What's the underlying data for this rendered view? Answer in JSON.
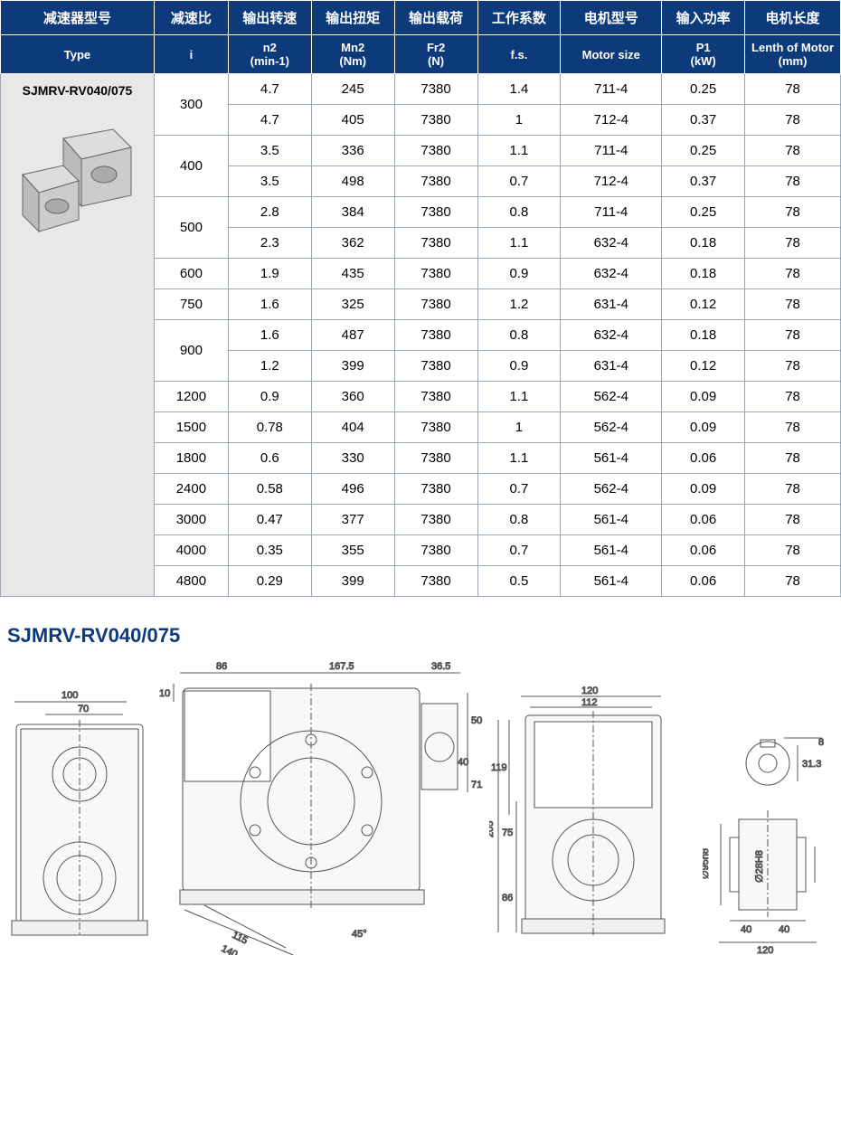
{
  "headers_cn": [
    "减速器型号",
    "减速比",
    "输出转速",
    "输出扭矩",
    "输出载荷",
    "工作系数",
    "电机型号",
    "输入功率",
    "电机长度"
  ],
  "headers_en": [
    "Type",
    "i",
    "n2\n(min-1)",
    "Mn2\n(Nm)",
    "Fr2\n(N)",
    "f.s.",
    "Motor size",
    "P1\n(kW)",
    "Lenth of Motor\n(mm)"
  ],
  "type_label": "SJMRV-RV040/075",
  "rows": [
    {
      "i": "300",
      "n2": "4.7",
      "mn2": "245",
      "fr2": "7380",
      "fs": "1.4",
      "motor": "711-4",
      "p1": "0.25",
      "ml": "78"
    },
    {
      "i": "",
      "n2": "4.7",
      "mn2": "405",
      "fr2": "7380",
      "fs": "1",
      "motor": "712-4",
      "p1": "0.37",
      "ml": "78"
    },
    {
      "i": "400",
      "n2": "3.5",
      "mn2": "336",
      "fr2": "7380",
      "fs": "1.1",
      "motor": "711-4",
      "p1": "0.25",
      "ml": "78"
    },
    {
      "i": "",
      "n2": "3.5",
      "mn2": "498",
      "fr2": "7380",
      "fs": "0.7",
      "motor": "712-4",
      "p1": "0.37",
      "ml": "78"
    },
    {
      "i": "500",
      "n2": "2.8",
      "mn2": "384",
      "fr2": "7380",
      "fs": "0.8",
      "motor": "711-4",
      "p1": "0.25",
      "ml": "78"
    },
    {
      "i": "",
      "n2": "2.3",
      "mn2": "362",
      "fr2": "7380",
      "fs": "1.1",
      "motor": "632-4",
      "p1": "0.18",
      "ml": "78"
    },
    {
      "i": "600",
      "n2": "1.9",
      "mn2": "435",
      "fr2": "7380",
      "fs": "0.9",
      "motor": "632-4",
      "p1": "0.18",
      "ml": "78"
    },
    {
      "i": "750",
      "n2": "1.6",
      "mn2": "325",
      "fr2": "7380",
      "fs": "1.2",
      "motor": "631-4",
      "p1": "0.12",
      "ml": "78"
    },
    {
      "i": "900",
      "n2": "1.6",
      "mn2": "487",
      "fr2": "7380",
      "fs": "0.8",
      "motor": "632-4",
      "p1": "0.18",
      "ml": "78"
    },
    {
      "i": "",
      "n2": "1.2",
      "mn2": "399",
      "fr2": "7380",
      "fs": "0.9",
      "motor": "631-4",
      "p1": "0.12",
      "ml": "78"
    },
    {
      "i": "1200",
      "n2": "0.9",
      "mn2": "360",
      "fr2": "7380",
      "fs": "1.1",
      "motor": "562-4",
      "p1": "0.09",
      "ml": "78"
    },
    {
      "i": "1500",
      "n2": "0.78",
      "mn2": "404",
      "fr2": "7380",
      "fs": "1",
      "motor": "562-4",
      "p1": "0.09",
      "ml": "78"
    },
    {
      "i": "1800",
      "n2": "0.6",
      "mn2": "330",
      "fr2": "7380",
      "fs": "1.1",
      "motor": "561-4",
      "p1": "0.06",
      "ml": "78"
    },
    {
      "i": "2400",
      "n2": "0.58",
      "mn2": "496",
      "fr2": "7380",
      "fs": "0.7",
      "motor": "562-4",
      "p1": "0.09",
      "ml": "78"
    },
    {
      "i": "3000",
      "n2": "0.47",
      "mn2": "377",
      "fr2": "7380",
      "fs": "0.8",
      "motor": "561-4",
      "p1": "0.06",
      "ml": "78"
    },
    {
      "i": "4000",
      "n2": "0.35",
      "mn2": "355",
      "fr2": "7380",
      "fs": "0.7",
      "motor": "561-4",
      "p1": "0.06",
      "ml": "78"
    },
    {
      "i": "4800",
      "n2": "0.29",
      "mn2": "399",
      "fr2": "7380",
      "fs": "0.5",
      "motor": "561-4",
      "p1": "0.06",
      "ml": "78"
    }
  ],
  "row_spans": [
    2,
    0,
    2,
    0,
    2,
    0,
    1,
    1,
    2,
    0,
    1,
    1,
    1,
    1,
    1,
    1,
    1
  ],
  "drawing_title": "SJMRV-RV040/075",
  "dims": {
    "d1_top": "100",
    "d1_top2": "70",
    "d2_top1": "86",
    "d2_top2": "167.5",
    "d2_top3": "36.5",
    "d2_s1": "10",
    "d2_s2": "50",
    "d2_s3": "40",
    "d2_s4": "71.5",
    "d2_btm1": "115",
    "d2_btm2": "140",
    "d2_ang": "45°",
    "d3_top1": "120",
    "d3_top2": "112",
    "d3_s1": "119",
    "d3_s2": "75",
    "d3_s3": "205",
    "d3_s4": "86",
    "d4_s1": "31.3",
    "d4_s2": "8",
    "d4_s3": "∅95h8",
    "d4_s4": "∅28H8",
    "d4_b1": "40",
    "d4_b2": "40",
    "d4_b3": "120"
  },
  "colors": {
    "header_bg": "#0d3a7a",
    "header_fg": "#ffffff",
    "border": "#9aa6b2",
    "typecell_bg": "#e8e8e8",
    "title": "#0d3a7a",
    "line": "#555"
  }
}
